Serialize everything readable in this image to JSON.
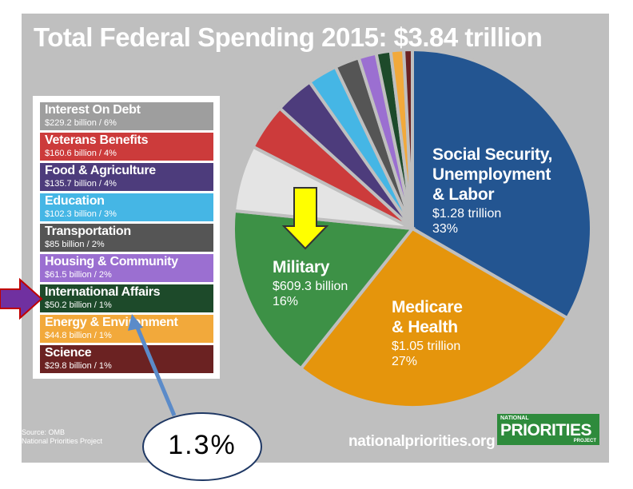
{
  "chart_data": {
    "type": "pie",
    "title": "Total Federal Spending 2015: $3.84 trillion",
    "series": [
      {
        "name": "Social Security, Unemployment & Labor",
        "value_label": "$1.28 trillion",
        "share_label": "33%",
        "value": 1280,
        "color": "#235591"
      },
      {
        "name": "Medicare & Health",
        "value_label": "$1.05 trillion",
        "share_label": "27%",
        "value": 1050,
        "color": "#e5950c"
      },
      {
        "name": "Military",
        "value_label": "$609.3 billion",
        "share_label": "16%",
        "value": 609.3,
        "color": "#3d9146"
      },
      {
        "name": "Interest On Debt",
        "value_label": "$229.2 billion",
        "share_label": "6%",
        "value": 229.2,
        "color": "#e4e4e4"
      },
      {
        "name": "Veterans Benefits",
        "value_label": "$160.6 billion",
        "share_label": "4%",
        "value": 160.6,
        "color": "#cc3b3b"
      },
      {
        "name": "Food & Agriculture",
        "value_label": "$135.7 billion",
        "share_label": "4%",
        "value": 135.7,
        "color": "#4d3c7c"
      },
      {
        "name": "Education",
        "value_label": "$102.3 billion",
        "share_label": "3%",
        "value": 102.3,
        "color": "#45b6e5"
      },
      {
        "name": "Transportation",
        "value_label": "$85 billion",
        "share_label": "2%",
        "value": 85,
        "color": "#555555"
      },
      {
        "name": "Housing & Community",
        "value_label": "$61.5 billion",
        "share_label": "2%",
        "value": 61.5,
        "color": "#9b6fd1"
      },
      {
        "name": "International Affairs",
        "value_label": "$50.2 billion",
        "share_label": "1%",
        "value": 50.2,
        "color": "#1d4a2a"
      },
      {
        "name": "Energy & Environment",
        "value_label": "$44.8 billion",
        "share_label": "1%",
        "value": 44.8,
        "color": "#f2a93b"
      },
      {
        "name": "Science",
        "value_label": "$29.8 billion",
        "share_label": "1%",
        "value": 29.8,
        "color": "#6b2222"
      }
    ]
  },
  "legend": [
    {
      "name": "Interest On Debt",
      "value": "$229.2 billion / 6%",
      "color": "#9e9e9e"
    },
    {
      "name": "Veterans Benefits",
      "value": "$160.6 billion / 4%",
      "color": "#cc3b3b"
    },
    {
      "name": "Food & Agriculture",
      "value": "$135.7 billion / 4%",
      "color": "#4d3c7c"
    },
    {
      "name": "Education",
      "value": "$102.3 billion / 3%",
      "color": "#45b6e5"
    },
    {
      "name": "Transportation",
      "value": "$85 billion / 2%",
      "color": "#555555"
    },
    {
      "name": "Housing & Community",
      "value": "$61.5 billion / 2%",
      "color": "#9b6fd1"
    },
    {
      "name": "International Affairs",
      "value": "$50.2 billion / 1%",
      "color": "#1d4a2a"
    },
    {
      "name": "Energy & Environment",
      "value": "$44.8 billion / 1%",
      "color": "#f2a93b"
    },
    {
      "name": "Science",
      "value": "$29.8 billion / 1%",
      "color": "#6b2222"
    }
  ],
  "pie_labels": {
    "social_security": {
      "line1": "Social Security,",
      "line2": "Unemployment",
      "line3": "& Labor",
      "amount": "$1.28 trillion",
      "share": "33%"
    },
    "military": {
      "line1": "Military",
      "amount": "$609.3 billion",
      "share": "16%"
    },
    "medicare": {
      "line1": "Medicare",
      "line2": "& Health",
      "amount": "$1.05 trillion",
      "share": "27%"
    }
  },
  "footer": {
    "source_line1": "Source: OMB",
    "source_line2": "National Priorities Project",
    "website": "nationalpriorities.org",
    "logo_line1": "NATIONAL",
    "logo_line2": "PRIORITIES",
    "logo_line3": "PROJECT"
  },
  "annotation": {
    "callout_text": "1.3%",
    "colors": {
      "yellow_arrow": "#ffff00",
      "purple_arrow": "#7030a0",
      "callout_arrow": "#5b8bc9"
    }
  }
}
